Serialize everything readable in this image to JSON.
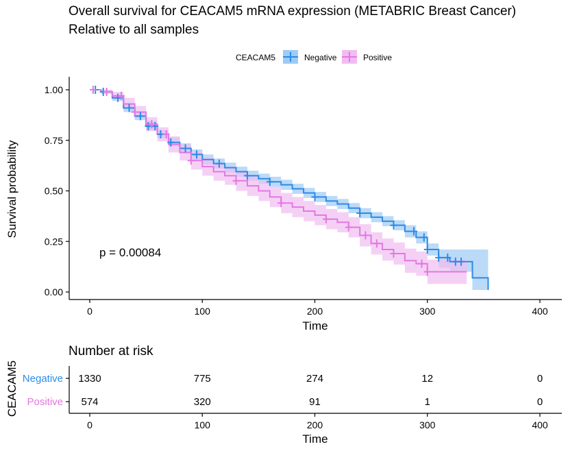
{
  "chart_data": {
    "type": "line",
    "title": "Overall survival for CEACAM5 mRNA expression (METABRIC Breast Cancer)",
    "subtitle": "Relative to all samples",
    "legend": {
      "title": "CEACAM5",
      "placement": "top",
      "entries": [
        "Negative",
        "Positive"
      ]
    },
    "xlabel": "Time",
    "ylabel": "Survival probability",
    "xlim": [
      0,
      400
    ],
    "ylim": [
      0,
      1
    ],
    "xticks": [
      "0",
      "100",
      "200",
      "300",
      "400"
    ],
    "yticks": [
      "0.00",
      "0.25",
      "0.50",
      "0.75",
      "1.00"
    ],
    "annotation": "p = 0.00084",
    "grid": false,
    "series": [
      {
        "name": "Negative",
        "color": "#2b8be6",
        "band_color": "#9ecbf5",
        "x": [
          0,
          10,
          20,
          30,
          40,
          50,
          60,
          70,
          80,
          90,
          100,
          110,
          120,
          130,
          140,
          150,
          160,
          170,
          180,
          190,
          200,
          210,
          220,
          230,
          240,
          250,
          260,
          270,
          280,
          290,
          300,
          310,
          320,
          330,
          335,
          340,
          350,
          354
        ],
        "y": [
          1.0,
          0.99,
          0.96,
          0.91,
          0.87,
          0.82,
          0.78,
          0.74,
          0.71,
          0.68,
          0.655,
          0.635,
          0.615,
          0.595,
          0.575,
          0.56,
          0.545,
          0.53,
          0.51,
          0.49,
          0.47,
          0.45,
          0.435,
          0.415,
          0.39,
          0.37,
          0.35,
          0.33,
          0.3,
          0.27,
          0.21,
          0.17,
          0.15,
          0.15,
          0.15,
          0.07,
          0.07,
          0.01
        ],
        "upper": [
          1.0,
          1.0,
          0.975,
          0.93,
          0.89,
          0.845,
          0.8,
          0.765,
          0.735,
          0.705,
          0.68,
          0.66,
          0.64,
          0.62,
          0.6,
          0.585,
          0.57,
          0.555,
          0.535,
          0.515,
          0.495,
          0.475,
          0.46,
          0.44,
          0.415,
          0.395,
          0.375,
          0.355,
          0.33,
          0.3,
          0.24,
          0.21,
          0.21,
          0.21,
          0.21,
          0.21,
          0.21,
          0.21
        ],
        "lower": [
          1.0,
          0.98,
          0.945,
          0.89,
          0.85,
          0.8,
          0.76,
          0.72,
          0.685,
          0.655,
          0.63,
          0.61,
          0.59,
          0.57,
          0.55,
          0.535,
          0.52,
          0.505,
          0.485,
          0.465,
          0.445,
          0.425,
          0.41,
          0.39,
          0.365,
          0.345,
          0.325,
          0.305,
          0.27,
          0.24,
          0.18,
          0.12,
          0.1,
          0.1,
          0.1,
          0.01,
          0.01,
          0.01
        ],
        "censor_x": [
          5,
          12,
          25,
          35,
          45,
          52,
          58,
          63,
          72,
          85,
          95,
          115,
          140,
          160,
          200,
          240,
          270,
          288,
          297,
          300,
          310,
          318,
          325,
          330
        ],
        "risk": [
          1330,
          775,
          274,
          12,
          0
        ]
      },
      {
        "name": "Positive",
        "color": "#e377e3",
        "band_color": "#f1bcf1",
        "x": [
          0,
          10,
          20,
          30,
          40,
          50,
          60,
          70,
          80,
          90,
          100,
          110,
          120,
          130,
          140,
          150,
          160,
          170,
          180,
          190,
          200,
          210,
          220,
          230,
          240,
          250,
          260,
          270,
          280,
          290,
          300,
          310,
          320,
          330,
          335
        ],
        "y": [
          1.0,
          0.99,
          0.97,
          0.93,
          0.89,
          0.83,
          0.78,
          0.73,
          0.69,
          0.65,
          0.62,
          0.595,
          0.575,
          0.55,
          0.525,
          0.5,
          0.47,
          0.44,
          0.42,
          0.4,
          0.38,
          0.36,
          0.345,
          0.32,
          0.28,
          0.24,
          0.21,
          0.19,
          0.155,
          0.14,
          0.1,
          0.1,
          0.1,
          0.1,
          0.1
        ],
        "upper": [
          1.0,
          1.0,
          0.99,
          0.96,
          0.92,
          0.865,
          0.815,
          0.77,
          0.73,
          0.695,
          0.665,
          0.64,
          0.62,
          0.6,
          0.575,
          0.55,
          0.52,
          0.49,
          0.47,
          0.45,
          0.43,
          0.41,
          0.395,
          0.37,
          0.335,
          0.295,
          0.265,
          0.245,
          0.215,
          0.2,
          0.16,
          0.16,
          0.16,
          0.16,
          0.16
        ],
        "lower": [
          1.0,
          0.98,
          0.95,
          0.9,
          0.86,
          0.795,
          0.745,
          0.69,
          0.65,
          0.605,
          0.575,
          0.55,
          0.53,
          0.5,
          0.475,
          0.45,
          0.42,
          0.39,
          0.37,
          0.35,
          0.33,
          0.31,
          0.295,
          0.27,
          0.225,
          0.185,
          0.155,
          0.135,
          0.095,
          0.08,
          0.04,
          0.04,
          0.04,
          0.04,
          0.04
        ],
        "censor_x": [
          3,
          15,
          28,
          40,
          55,
          68,
          90,
          130,
          170,
          210,
          230,
          245,
          255,
          270,
          295,
          300
        ],
        "risk": [
          574,
          320,
          91,
          1,
          0
        ]
      }
    ],
    "risk_table": {
      "title": "Number at risk",
      "ylabel": "CEACAM5",
      "xlabel": "Time",
      "times": [
        0,
        100,
        200,
        300,
        400
      ]
    }
  }
}
